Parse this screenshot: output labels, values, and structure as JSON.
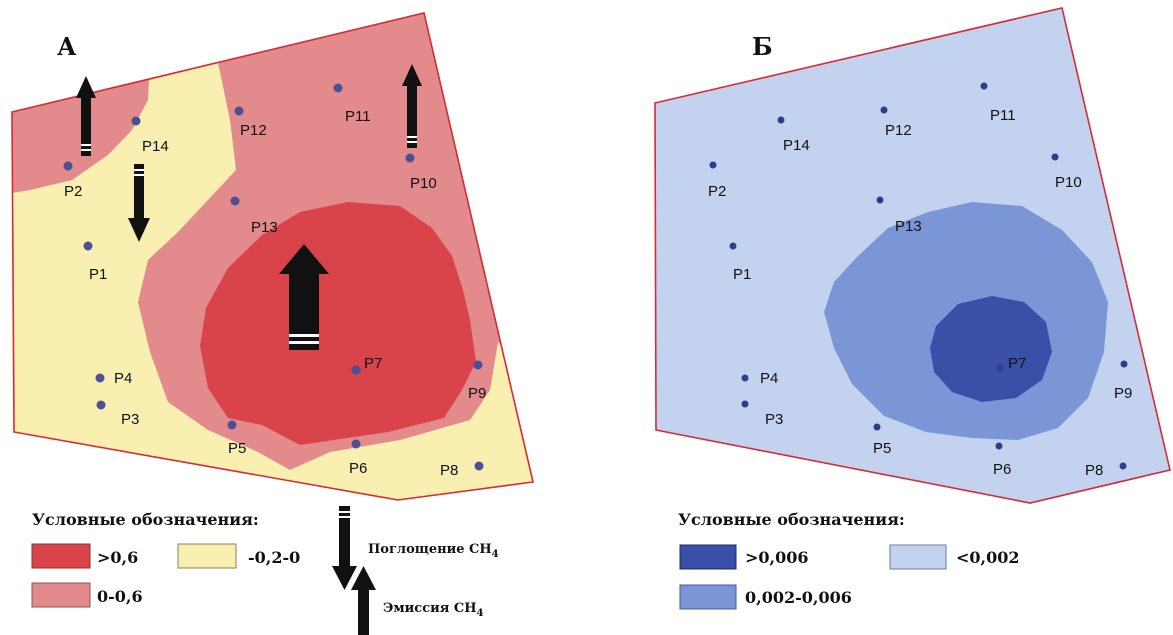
{
  "panels": {
    "a": {
      "label": "А",
      "points": [
        "P14",
        "P12",
        "P11",
        "P2",
        "P10",
        "P13",
        "P1",
        "P4",
        "P7",
        "P9",
        "P3",
        "P5",
        "P6",
        "P8"
      ],
      "legend": {
        "title": "Условные обозначения:",
        "items": [
          {
            "label": ">0,6",
            "color": "#d8444a"
          },
          {
            "label": "-0,2-0",
            "color": "#f8efb0"
          },
          {
            "label": "0-0,6",
            "color": "#e28a8c"
          }
        ],
        "arrows": [
          {
            "label": "Поглощение CH",
            "sub": "4",
            "direction": "down"
          },
          {
            "label": "Эмиссия CH",
            "sub": "4",
            "direction": "up"
          }
        ]
      }
    },
    "b": {
      "label": "Б",
      "points": [
        "P14",
        "P12",
        "P11",
        "P2",
        "P10",
        "P13",
        "P1",
        "P7",
        "P4",
        "P9",
        "P3",
        "P5",
        "P6",
        "P8"
      ],
      "legend": {
        "title": "Условные обозначения:",
        "items": [
          {
            "label": ">0,006",
            "color": "#3a4fa8"
          },
          {
            "label": "<0,002",
            "color": "#c3d2ef"
          },
          {
            "label": "0,002-0,006",
            "color": "#7b96d6"
          }
        ]
      }
    }
  },
  "colors": {
    "boundary": "#d42b35",
    "panel_b_outer": "#c3d2ef"
  }
}
